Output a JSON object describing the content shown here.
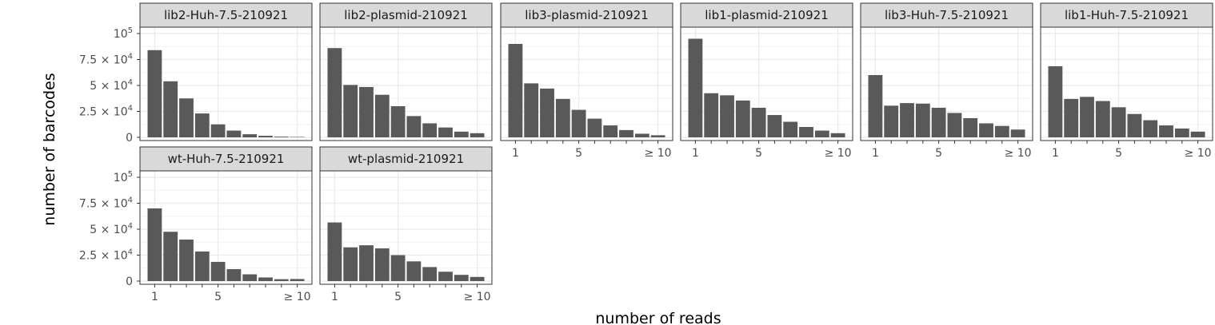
{
  "chart_data": {
    "type": "bar",
    "facet_layout": "wrap",
    "xlabel": "number of reads",
    "ylabel": "number of barcodes",
    "categories": [
      1,
      2,
      3,
      4,
      5,
      6,
      7,
      8,
      9,
      10
    ],
    "x_tick_labels": [
      "1",
      "5",
      "≥ 10"
    ],
    "x_tick_values": [
      1,
      5,
      10
    ],
    "y_tick_labels": [
      "0",
      "2.5 × 10^4",
      "5 × 10^4",
      "7.5 × 10^4",
      "10^5"
    ],
    "y_tick_values": [
      0,
      25000,
      50000,
      75000,
      100000
    ],
    "ylim": [
      0,
      100000
    ],
    "grid": true,
    "bar_color": "#595959",
    "panels": [
      {
        "name": "lib2-Huh-7.5-210921",
        "values": [
          84000,
          54000,
          37500,
          23000,
          12500,
          6500,
          3000,
          1500,
          700,
          400
        ]
      },
      {
        "name": "lib2-plasmid-210921",
        "values": [
          86000,
          50500,
          48500,
          41000,
          30000,
          20500,
          13500,
          9500,
          5500,
          4000
        ]
      },
      {
        "name": "lib3-plasmid-210921",
        "values": [
          90000,
          52000,
          47000,
          37000,
          26500,
          18000,
          11500,
          7000,
          3500,
          2000
        ]
      },
      {
        "name": "lib1-plasmid-210921",
        "values": [
          95000,
          42500,
          40500,
          35500,
          28500,
          21500,
          15000,
          10000,
          6500,
          4000
        ]
      },
      {
        "name": "lib3-Huh-7.5-210921",
        "values": [
          60000,
          30500,
          33000,
          32500,
          28500,
          23500,
          18500,
          13500,
          11000,
          7500
        ]
      },
      {
        "name": "lib1-Huh-7.5-210921",
        "values": [
          68500,
          37000,
          39000,
          35000,
          29000,
          22500,
          16500,
          11500,
          8500,
          5500
        ]
      },
      {
        "name": "wt-Huh-7.5-210921",
        "values": [
          70000,
          47500,
          40000,
          28500,
          18500,
          11500,
          6500,
          3500,
          1800,
          2000
        ]
      },
      {
        "name": "wt-plasmid-210921",
        "values": [
          56500,
          32500,
          34500,
          31500,
          25000,
          19000,
          13500,
          9000,
          6000,
          4000
        ]
      }
    ]
  }
}
